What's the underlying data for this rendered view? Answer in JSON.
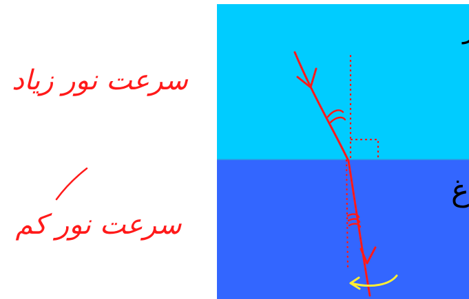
{
  "labels": {
    "upper_note": "سرعت نور زیاد",
    "lower_note": "سرعت نور کم",
    "upper_medium_glyph": "ر",
    "lower_medium_glyph": "غ"
  },
  "colors": {
    "upper_medium": "#00ccff",
    "lower_medium": "#3366ff",
    "ink_red": "#ff1a1a",
    "ink_yellow": "#ffee33",
    "ink_black": "#000000"
  },
  "icons": {
    "incident_arrow": "chevron-down-icon",
    "refracted_arrow": "chevron-down-icon",
    "curved_arrow": "curved-left-arrow-icon"
  }
}
